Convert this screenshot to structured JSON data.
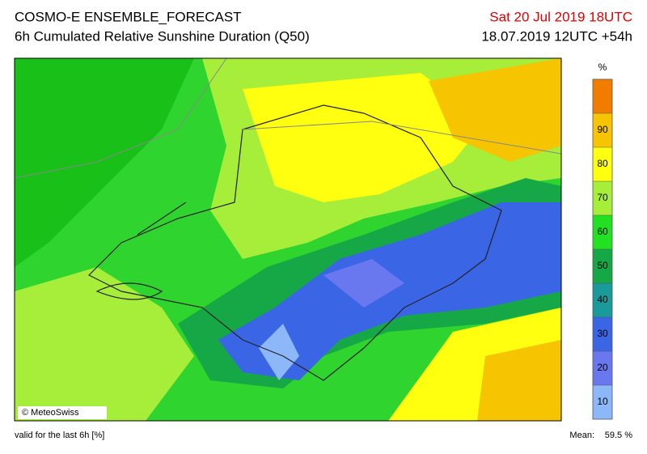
{
  "header": {
    "title": "COSMO-E ENSEMBLE_FORECAST",
    "subtitle": "6h Cumulated Relative Sunshine Duration (Q50)",
    "valid_time": "Sat 20 Jul 2019 18UTC",
    "run": "18.07.2019 12UTC +54h"
  },
  "legend": {
    "unit": "%",
    "ticks": [
      10,
      20,
      30,
      40,
      50,
      60,
      70,
      80,
      90
    ],
    "colors": [
      "#8cb8fa",
      "#6a78f0",
      "#3a66e6",
      "#1a9a9a",
      "#16a846",
      "#22e022",
      "#a6ee3a",
      "#ffff10",
      "#f6c400",
      "#f27c00"
    ]
  },
  "credit": "© MeteoSwiss",
  "footer": {
    "note": "valid for the last 6h [%]",
    "mean_label": "Mean:",
    "mean_value": "59.5 %"
  }
}
